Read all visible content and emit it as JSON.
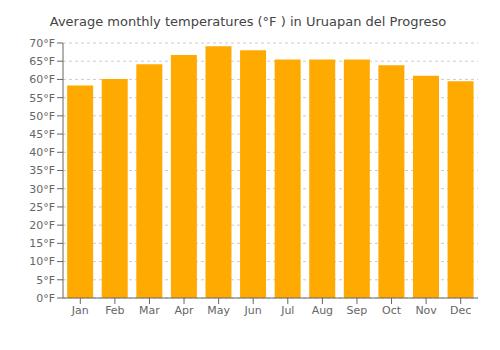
{
  "chart_data": {
    "type": "bar",
    "title": "Average monthly temperatures (°F ) in Uruapan del Progreso",
    "categories": [
      "Jan",
      "Feb",
      "Mar",
      "Apr",
      "May",
      "Jun",
      "Jul",
      "Aug",
      "Sep",
      "Oct",
      "Nov",
      "Dec"
    ],
    "values": [
      58.3,
      60.1,
      64.2,
      66.7,
      69.1,
      68.0,
      65.5,
      65.5,
      65.5,
      63.9,
      61.0,
      59.5
    ],
    "color": "#FFAA00",
    "ylim": [
      0,
      70
    ],
    "yticks": [
      {
        "value": 0,
        "label": "0°F"
      },
      {
        "value": 5,
        "label": "5°F"
      },
      {
        "value": 10,
        "label": "10°F"
      },
      {
        "value": 15,
        "label": "15°F"
      },
      {
        "value": 20,
        "label": "20°F"
      },
      {
        "value": 25,
        "label": "25°F"
      },
      {
        "value": 30,
        "label": "30°F"
      },
      {
        "value": 35,
        "label": "35°F"
      },
      {
        "value": 40,
        "label": "40°F"
      },
      {
        "value": 45,
        "label": "45°F"
      },
      {
        "value": 50,
        "label": "50°F"
      },
      {
        "value": 55,
        "label": "55°F"
      },
      {
        "value": 60,
        "label": "60°F"
      },
      {
        "value": 65,
        "label": "65°F"
      },
      {
        "value": 70,
        "label": "70°F"
      }
    ],
    "grid": true
  }
}
